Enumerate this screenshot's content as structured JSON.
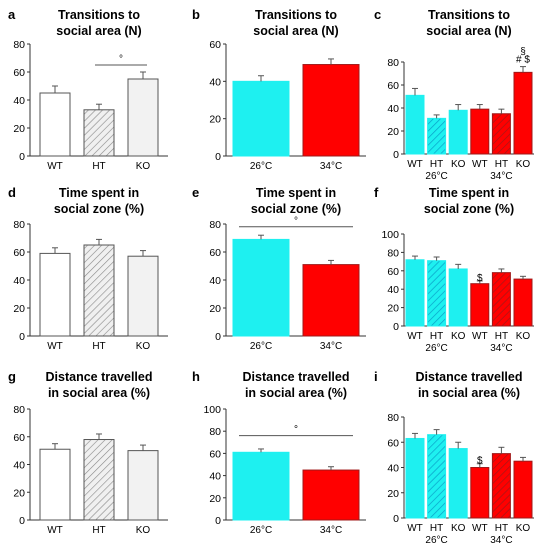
{
  "colors": {
    "white_bar": "#ffffff",
    "ht_bar": "#f0f0f0",
    "ko_bar": "#f2f2f2",
    "bar_outline": "#555555",
    "cyan": "#1ef0f0",
    "red": "#ff0000",
    "dark_red": "#a01818",
    "axis": "#333333"
  },
  "chart_data": [
    {
      "id": "a",
      "letter": "a",
      "type": "bar",
      "title_lines": [
        "Transitions to",
        "social area (N)"
      ],
      "categories": [
        "WT",
        "HT",
        "KO"
      ],
      "values": [
        45,
        33,
        55
      ],
      "errors": [
        5,
        4,
        5
      ],
      "fills": [
        "white",
        "hatch",
        "light"
      ],
      "ylim": [
        0,
        80
      ],
      "yticks": [
        0,
        20,
        40,
        60,
        80
      ],
      "annotations": [
        {
          "text": "°",
          "from": 1,
          "to": 2,
          "y": 65
        }
      ]
    },
    {
      "id": "b",
      "letter": "b",
      "type": "bar",
      "title_lines": [
        "Transitions to",
        "social area (N)"
      ],
      "categories": [
        "26°C",
        "34°C"
      ],
      "values": [
        40,
        49
      ],
      "errors": [
        3,
        3
      ],
      "fills": [
        "cyan",
        "red"
      ],
      "ylim": [
        0,
        60
      ],
      "yticks": [
        0,
        20,
        40,
        60
      ],
      "annotations": []
    },
    {
      "id": "c",
      "letter": "c",
      "type": "bar",
      "title_lines": [
        "Transitions to",
        "social area (N)"
      ],
      "categories": [
        "WT",
        "HT",
        "KO",
        "WT",
        "HT",
        "KO"
      ],
      "values": [
        51,
        31,
        38,
        39,
        35,
        71
      ],
      "errors": [
        6,
        3,
        5,
        4,
        4,
        5
      ],
      "fills": [
        "cyan",
        "cyan-hatch",
        "cyan",
        "red",
        "red-hatch",
        "red"
      ],
      "groups": [
        "26°C",
        "34°C"
      ],
      "ylim": [
        0,
        80
      ],
      "yticks": [
        0,
        20,
        40,
        60,
        80
      ],
      "marks": [
        {
          "bar": 5,
          "text": "§",
          "offset": 20
        },
        {
          "bar": 5,
          "text": "#  $",
          "offset": 12
        }
      ],
      "annotations": []
    },
    {
      "id": "d",
      "letter": "d",
      "type": "bar",
      "title_lines": [
        "Time spent in",
        "social zone (%)"
      ],
      "categories": [
        "WT",
        "HT",
        "KO"
      ],
      "values": [
        59,
        65,
        57
      ],
      "errors": [
        4,
        4,
        4
      ],
      "fills": [
        "white",
        "hatch",
        "light"
      ],
      "ylim": [
        0,
        80
      ],
      "yticks": [
        0,
        20,
        40,
        60,
        80
      ],
      "annotations": []
    },
    {
      "id": "e",
      "letter": "e",
      "type": "bar",
      "title_lines": [
        "Time spent in",
        "social zone (%)"
      ],
      "categories": [
        "26°C",
        "34°C"
      ],
      "values": [
        69,
        51
      ],
      "errors": [
        3,
        3
      ],
      "fills": [
        "cyan",
        "red"
      ],
      "ylim": [
        0,
        80
      ],
      "yticks": [
        0,
        20,
        40,
        60,
        80
      ],
      "annotations": [
        {
          "text": "°",
          "from": 0,
          "to": 1,
          "y": 78
        }
      ]
    },
    {
      "id": "f",
      "letter": "f",
      "type": "bar",
      "title_lines": [
        "Time spent in",
        "social zone (%)"
      ],
      "categories": [
        "WT",
        "HT",
        "KO",
        "WT",
        "HT",
        "KO"
      ],
      "values": [
        72,
        71,
        62,
        46,
        58,
        51
      ],
      "errors": [
        4,
        4,
        5,
        3,
        4,
        3
      ],
      "fills": [
        "cyan",
        "cyan-hatch",
        "cyan",
        "red",
        "red-hatch",
        "red"
      ],
      "groups": [
        "26°C",
        "34°C"
      ],
      "ylim": [
        0,
        100
      ],
      "yticks": [
        0,
        20,
        40,
        60,
        80,
        100
      ],
      "marks": [
        {
          "bar": 3,
          "text": "$",
          "offset": 8
        }
      ],
      "annotations": []
    },
    {
      "id": "g",
      "letter": "g",
      "type": "bar",
      "title_lines": [
        "Distance travelled",
        "in social area (%)"
      ],
      "categories": [
        "WT",
        "HT",
        "KO"
      ],
      "values": [
        51,
        58,
        50
      ],
      "errors": [
        4,
        4,
        4
      ],
      "fills": [
        "white",
        "hatch",
        "light"
      ],
      "ylim": [
        0,
        80
      ],
      "yticks": [
        0,
        20,
        40,
        60,
        80
      ],
      "annotations": []
    },
    {
      "id": "h",
      "letter": "h",
      "type": "bar",
      "title_lines": [
        "Distance travelled",
        "in social area (%)"
      ],
      "categories": [
        "26°C",
        "34°C"
      ],
      "values": [
        61,
        45
      ],
      "errors": [
        3,
        3
      ],
      "fills": [
        "cyan",
        "red"
      ],
      "ylim": [
        0,
        100
      ],
      "yticks": [
        0,
        20,
        40,
        60,
        80,
        100
      ],
      "annotations": [
        {
          "text": "°",
          "from": 0,
          "to": 1,
          "y": 76
        }
      ]
    },
    {
      "id": "i",
      "letter": "i",
      "type": "bar",
      "title_lines": [
        "Distance travelled",
        "in social area (%)"
      ],
      "categories": [
        "WT",
        "HT",
        "KO",
        "WT",
        "HT",
        "KO"
      ],
      "values": [
        63,
        66,
        55,
        40,
        51,
        45
      ],
      "errors": [
        4,
        4,
        5,
        3,
        5,
        3
      ],
      "fills": [
        "cyan",
        "cyan-hatch",
        "cyan",
        "red",
        "red-hatch",
        "red"
      ],
      "groups": [
        "26°C",
        "34°C"
      ],
      "ylim": [
        0,
        80
      ],
      "yticks": [
        0,
        20,
        40,
        60,
        80
      ],
      "marks": [
        {
          "bar": 3,
          "text": "$",
          "offset": 8
        }
      ],
      "annotations": []
    }
  ]
}
